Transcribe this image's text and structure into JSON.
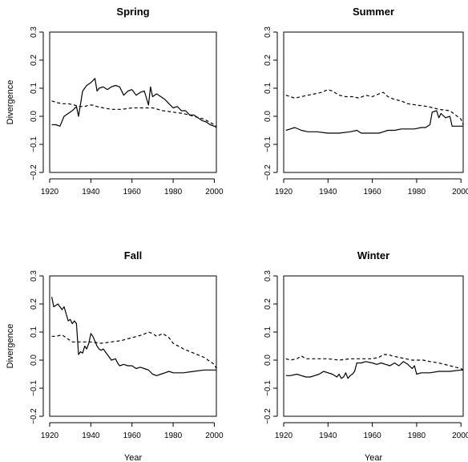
{
  "chart_data": [
    {
      "type": "line",
      "title": "Spring",
      "xlabel": "",
      "ylabel": "Divergence",
      "xlim": [
        1920,
        2001
      ],
      "ylim": [
        -0.2,
        0.3
      ],
      "xticks": [
        "1920",
        "1940",
        "1960",
        "1980",
        "2000"
      ],
      "yticks": [
        "−0.2",
        "−0.1",
        "0.0",
        "0.1",
        "0.2",
        "0.3"
      ],
      "series": [
        {
          "style": "solid",
          "x": [
            1921,
            1923,
            1925,
            1927,
            1929,
            1931,
            1933,
            1934,
            1936,
            1938,
            1940,
            1942,
            1943,
            1944,
            1946,
            1948,
            1950,
            1952,
            1954,
            1956,
            1958,
            1960,
            1962,
            1964,
            1966,
            1968,
            1969,
            1970,
            1972,
            1974,
            1976,
            1978,
            1980,
            1982,
            1984,
            1986,
            1988,
            1990,
            1992,
            1994,
            1996,
            1998,
            2000,
            2001
          ],
          "y": [
            -0.03,
            -0.03,
            -0.035,
            0.0,
            0.01,
            0.02,
            0.035,
            0.0,
            0.09,
            0.11,
            0.12,
            0.135,
            0.09,
            0.1,
            0.105,
            0.095,
            0.105,
            0.11,
            0.105,
            0.075,
            0.09,
            0.095,
            0.075,
            0.085,
            0.09,
            0.04,
            0.105,
            0.07,
            0.08,
            0.07,
            0.06,
            0.045,
            0.03,
            0.035,
            0.02,
            0.02,
            0.005,
            0.005,
            -0.005,
            -0.015,
            -0.02,
            -0.03,
            -0.035,
            -0.04
          ]
        },
        {
          "style": "dashed",
          "x": [
            1921,
            1923,
            1926,
            1929,
            1932,
            1935,
            1937,
            1939,
            1941,
            1943,
            1946,
            1950,
            1955,
            1960,
            1965,
            1970,
            1975,
            1980,
            1985,
            1990,
            1995,
            2000,
            2001
          ],
          "y": [
            0.055,
            0.05,
            0.045,
            0.045,
            0.04,
            0.035,
            0.035,
            0.04,
            0.04,
            0.035,
            0.03,
            0.025,
            0.025,
            0.03,
            0.03,
            0.03,
            0.02,
            0.015,
            0.01,
            0.0,
            -0.01,
            -0.03,
            -0.035
          ]
        }
      ]
    },
    {
      "type": "line",
      "title": "Summer",
      "xlabel": "",
      "ylabel": "",
      "xlim": [
        1920,
        2001
      ],
      "ylim": [
        -0.2,
        0.3
      ],
      "xticks": [
        "1920",
        "1940",
        "1960",
        "1980",
        "2000"
      ],
      "yticks": [
        "−0.2",
        "−0.1",
        "0.0",
        "0.1",
        "0.2",
        "0.3"
      ],
      "series": [
        {
          "style": "solid",
          "x": [
            1921,
            1923,
            1925,
            1928,
            1931,
            1935,
            1940,
            1945,
            1950,
            1953,
            1955,
            1958,
            1960,
            1963,
            1965,
            1967,
            1970,
            1973,
            1976,
            1979,
            1982,
            1984,
            1986,
            1987,
            1989,
            1990,
            1991,
            1993,
            1995,
            1996,
            1998,
            2000,
            2001
          ],
          "y": [
            -0.05,
            -0.045,
            -0.04,
            -0.05,
            -0.055,
            -0.055,
            -0.06,
            -0.06,
            -0.055,
            -0.05,
            -0.06,
            -0.06,
            -0.06,
            -0.06,
            -0.055,
            -0.05,
            -0.05,
            -0.045,
            -0.045,
            -0.045,
            -0.04,
            -0.04,
            -0.03,
            0.015,
            0.02,
            -0.005,
            0.01,
            -0.005,
            0.0,
            -0.035,
            -0.035,
            -0.035,
            -0.035
          ]
        },
        {
          "style": "dashed",
          "x": [
            1921,
            1923,
            1925,
            1928,
            1931,
            1934,
            1937,
            1940,
            1942,
            1945,
            1948,
            1951,
            1954,
            1957,
            1960,
            1963,
            1965,
            1967,
            1970,
            1973,
            1976,
            1980,
            1985,
            1990,
            1995,
            2000,
            2001
          ],
          "y": [
            0.075,
            0.07,
            0.065,
            0.07,
            0.075,
            0.08,
            0.085,
            0.095,
            0.09,
            0.075,
            0.07,
            0.07,
            0.065,
            0.075,
            0.07,
            0.08,
            0.085,
            0.07,
            0.06,
            0.055,
            0.045,
            0.04,
            0.035,
            0.025,
            0.02,
            -0.01,
            -0.03
          ]
        }
      ]
    },
    {
      "type": "line",
      "title": "Fall",
      "xlabel": "Year",
      "ylabel": "Divergence",
      "xlim": [
        1920,
        2001
      ],
      "ylim": [
        -0.2,
        0.3
      ],
      "xticks": [
        "1920",
        "1940",
        "1960",
        "1980",
        "2000"
      ],
      "yticks": [
        "−0.2",
        "−0.1",
        "0.0",
        "0.1",
        "0.2",
        "0.3"
      ],
      "series": [
        {
          "style": "solid",
          "x": [
            1921,
            1922,
            1924,
            1926,
            1927,
            1929,
            1930,
            1931,
            1932,
            1933,
            1934,
            1935,
            1936,
            1937,
            1938,
            1939,
            1940,
            1941,
            1943,
            1944,
            1945,
            1946,
            1948,
            1950,
            1952,
            1953,
            1954,
            1956,
            1958,
            1960,
            1962,
            1964,
            1966,
            1968,
            1970,
            1972,
            1974,
            1976,
            1978,
            1980,
            1985,
            1990,
            1995,
            2000,
            2001
          ],
          "y": [
            0.225,
            0.19,
            0.2,
            0.18,
            0.19,
            0.14,
            0.145,
            0.13,
            0.14,
            0.13,
            0.02,
            0.03,
            0.025,
            0.05,
            0.04,
            0.06,
            0.095,
            0.085,
            0.05,
            0.04,
            0.035,
            0.04,
            0.02,
            0.0,
            0.005,
            -0.01,
            -0.02,
            -0.015,
            -0.02,
            -0.02,
            -0.03,
            -0.025,
            -0.03,
            -0.035,
            -0.05,
            -0.055,
            -0.05,
            -0.045,
            -0.04,
            -0.045,
            -0.045,
            -0.04,
            -0.035,
            -0.035,
            -0.035
          ]
        },
        {
          "style": "dashed",
          "x": [
            1921,
            1923,
            1926,
            1928,
            1931,
            1935,
            1940,
            1945,
            1950,
            1955,
            1960,
            1965,
            1968,
            1970,
            1972,
            1975,
            1978,
            1980,
            1985,
            1990,
            1995,
            2000,
            2001
          ],
          "y": [
            0.085,
            0.085,
            0.09,
            0.08,
            0.065,
            0.065,
            0.065,
            0.06,
            0.065,
            0.07,
            0.08,
            0.09,
            0.1,
            0.095,
            0.085,
            0.095,
            0.08,
            0.06,
            0.04,
            0.025,
            0.01,
            -0.015,
            -0.03
          ]
        }
      ]
    },
    {
      "type": "line",
      "title": "Winter",
      "xlabel": "Year",
      "ylabel": "",
      "xlim": [
        1920,
        2001
      ],
      "ylim": [
        -0.2,
        0.3
      ],
      "xticks": [
        "1920",
        "1940",
        "1960",
        "1980",
        "2000"
      ],
      "yticks": [
        "−0.2",
        "−0.1",
        "0.0",
        "0.1",
        "0.2",
        "0.3"
      ],
      "series": [
        {
          "style": "solid",
          "x": [
            1921,
            1923,
            1926,
            1928,
            1930,
            1932,
            1934,
            1936,
            1938,
            1940,
            1942,
            1944,
            1945,
            1946,
            1947,
            1948,
            1949,
            1950,
            1951,
            1952,
            1953,
            1955,
            1957,
            1960,
            1962,
            1964,
            1966,
            1968,
            1970,
            1972,
            1974,
            1976,
            1978,
            1979,
            1980,
            1982,
            1984,
            1986,
            1990,
            1995,
            2000,
            2001
          ],
          "y": [
            -0.055,
            -0.055,
            -0.05,
            -0.055,
            -0.06,
            -0.06,
            -0.055,
            -0.05,
            -0.04,
            -0.045,
            -0.05,
            -0.06,
            -0.05,
            -0.065,
            -0.06,
            -0.045,
            -0.065,
            -0.055,
            -0.05,
            -0.04,
            -0.01,
            -0.01,
            -0.005,
            -0.01,
            -0.015,
            -0.01,
            -0.015,
            -0.02,
            -0.01,
            -0.02,
            -0.005,
            -0.015,
            -0.03,
            -0.02,
            -0.05,
            -0.045,
            -0.045,
            -0.045,
            -0.04,
            -0.04,
            -0.035,
            -0.035
          ]
        },
        {
          "style": "dashed",
          "x": [
            1921,
            1923,
            1926,
            1928,
            1930,
            1933,
            1936,
            1940,
            1945,
            1950,
            1955,
            1960,
            1963,
            1965,
            1967,
            1969,
            1972,
            1975,
            1978,
            1980,
            1983,
            1986,
            1990,
            1995,
            2000,
            2001
          ],
          "y": [
            0.005,
            0.0,
            0.005,
            0.015,
            0.005,
            0.005,
            0.005,
            0.005,
            0.0,
            0.005,
            0.005,
            0.005,
            0.01,
            0.02,
            0.02,
            0.015,
            0.01,
            0.005,
            0.0,
            0.0,
            0.0,
            -0.005,
            -0.01,
            -0.02,
            -0.03,
            -0.035
          ]
        }
      ]
    }
  ]
}
